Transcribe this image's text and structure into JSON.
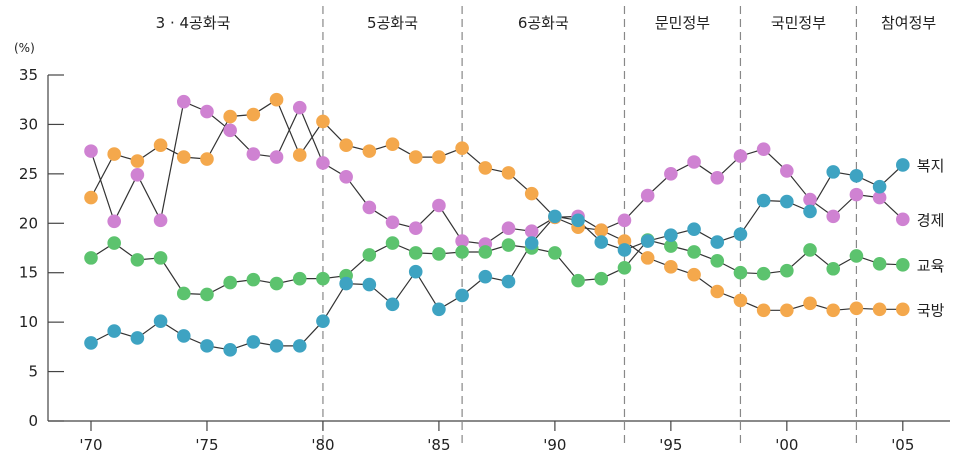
{
  "chart_data": {
    "type": "line",
    "y_unit_label": "(%)",
    "ylim": [
      0,
      35
    ],
    "y_ticks": [
      "0",
      "5",
      "10",
      "15",
      "20",
      "25",
      "30",
      "35"
    ],
    "x_ticks": [
      {
        "year": 1970,
        "label": "'70"
      },
      {
        "year": 1975,
        "label": "'75"
      },
      {
        "year": 1980,
        "label": "'80"
      },
      {
        "year": 1985,
        "label": "'85"
      },
      {
        "year": 1990,
        "label": "'90"
      },
      {
        "year": 1995,
        "label": "'95"
      },
      {
        "year": 2000,
        "label": "'00"
      },
      {
        "year": 2005,
        "label": "'05"
      }
    ],
    "periods": [
      {
        "label": "3 · 4공화국",
        "start": 1968.8,
        "end": 1980.0
      },
      {
        "label": "5공화국",
        "start": 1980.0,
        "end": 1986.0
      },
      {
        "label": "6공화국",
        "start": 1986.0,
        "end": 1993.0
      },
      {
        "label": "문민정부",
        "start": 1993.0,
        "end": 1998.0
      },
      {
        "label": "국민정부",
        "start": 1998.0,
        "end": 2003.0
      },
      {
        "label": "참여정부",
        "start": 2003.0,
        "end": 2007.5
      }
    ],
    "x": [
      1970,
      1971,
      1972,
      1973,
      1974,
      1975,
      1976,
      1977,
      1978,
      1979,
      1980,
      1981,
      1982,
      1983,
      1984,
      1985,
      1986,
      1987,
      1988,
      1989,
      1990,
      1991,
      1992,
      1993,
      1994,
      1995,
      1996,
      1997,
      1998,
      1999,
      2000,
      2001,
      2002,
      2003,
      2004,
      2005,
      2006
    ],
    "series": [
      {
        "name": "경제",
        "color": "#cf82d2",
        "values": [
          27.3,
          20.2,
          24.9,
          20.3,
          32.3,
          31.3,
          29.4,
          27.0,
          26.7,
          31.7,
          26.1,
          24.7,
          21.6,
          20.1,
          19.5,
          21.8,
          18.2,
          17.9,
          19.5,
          19.2,
          20.6,
          20.7,
          19.3,
          20.3,
          22.8,
          25.0,
          26.2,
          24.6,
          26.8,
          27.5,
          25.3,
          22.4,
          20.7,
          22.9,
          22.6,
          20.4,
          null
        ]
      },
      {
        "name": "국방",
        "color": "#f4a84c",
        "values": [
          22.6,
          27.0,
          26.3,
          27.9,
          26.7,
          26.5,
          30.8,
          31.0,
          32.5,
          26.9,
          30.3,
          27.9,
          27.3,
          28.0,
          26.7,
          26.7,
          27.6,
          25.6,
          25.1,
          23.0,
          20.6,
          19.6,
          19.3,
          18.2,
          16.5,
          15.6,
          14.8,
          13.1,
          12.2,
          11.2,
          11.2,
          11.9,
          11.2,
          11.4,
          11.3,
          11.3,
          null
        ]
      },
      {
        "name": "교육",
        "color": "#5cc36e",
        "values": [
          16.5,
          18.0,
          16.3,
          16.5,
          12.9,
          12.8,
          14.0,
          14.3,
          13.9,
          14.4,
          14.4,
          14.7,
          16.8,
          18.0,
          17.0,
          16.9,
          17.1,
          17.1,
          17.8,
          17.5,
          17.0,
          14.2,
          14.4,
          15.5,
          18.3,
          17.7,
          17.1,
          16.2,
          15.0,
          14.9,
          15.2,
          17.3,
          15.4,
          16.7,
          15.9,
          15.8,
          null
        ]
      },
      {
        "name": "복지",
        "color": "#3ea3c2",
        "values": [
          7.9,
          9.1,
          8.4,
          10.1,
          8.6,
          7.6,
          7.2,
          8.0,
          7.6,
          7.6,
          10.1,
          13.9,
          13.8,
          11.8,
          15.1,
          11.3,
          12.7,
          14.6,
          14.1,
          18.0,
          20.7,
          20.3,
          18.1,
          17.3,
          18.2,
          18.8,
          19.4,
          18.1,
          18.9,
          22.3,
          22.2,
          21.2,
          25.2,
          24.8,
          23.7,
          25.9,
          null
        ]
      }
    ],
    "legend_placement": "right",
    "grid": false
  }
}
